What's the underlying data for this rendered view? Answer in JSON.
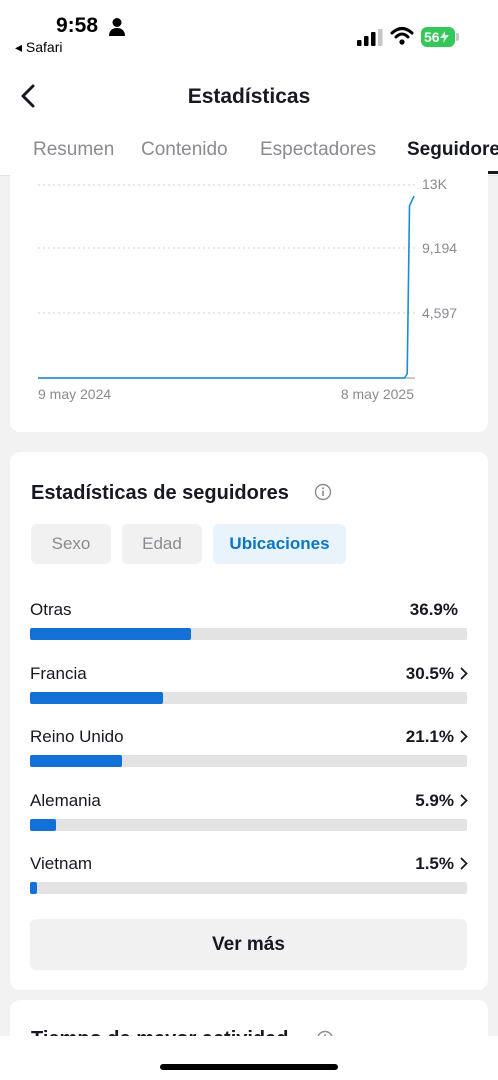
{
  "status_bar": {
    "time": "9:58",
    "back_app": "◂ Safari",
    "battery": "56",
    "icons": [
      "person-icon",
      "signal-icon",
      "wifi-icon",
      "battery-icon"
    ]
  },
  "header": {
    "title": "Estadísticas",
    "back_icon": "chevron-left-icon"
  },
  "tabs": [
    {
      "label": "Resumen",
      "active": false
    },
    {
      "label": "Contenido",
      "active": false
    },
    {
      "label": "Espectadores",
      "active": false
    },
    {
      "label": "Seguidores",
      "active": true
    }
  ],
  "chart_data": {
    "type": "line",
    "x_tick_labels": [
      "9 may 2024",
      "8 may 2025"
    ],
    "y_tick_labels": [
      "13K",
      "9,194",
      "4,597"
    ],
    "ylim": [
      0,
      13791
    ],
    "grid": true,
    "series": [
      {
        "color": "#1a8cd8",
        "points": [
          [
            0,
            0
          ],
          [
            0.975,
            0
          ],
          [
            0.982,
            300
          ],
          [
            0.988,
            12300
          ],
          [
            0.993,
            12600
          ],
          [
            1.0,
            13000
          ]
        ]
      }
    ]
  },
  "followers_stats": {
    "title": "Estadísticas de seguidores",
    "info_icon": "info-icon",
    "chips": [
      {
        "label": "Sexo",
        "active": false
      },
      {
        "label": "Edad",
        "active": false
      },
      {
        "label": "Ubicaciones",
        "active": true
      }
    ],
    "countries": [
      {
        "name": "Otras",
        "percent": "36.9%",
        "value": 36.9,
        "chevron": false
      },
      {
        "name": "Francia",
        "percent": "30.5%",
        "value": 30.5,
        "chevron": true
      },
      {
        "name": "Reino Unido",
        "percent": "21.1%",
        "value": 21.1,
        "chevron": true
      },
      {
        "name": "Alemania",
        "percent": "5.9%",
        "value": 5.9,
        "chevron": true
      },
      {
        "name": "Vietnam",
        "percent": "1.5%",
        "value": 1.5,
        "chevron": true
      }
    ],
    "more_button": "Ver más"
  },
  "next_section": {
    "title": "Tiempo de mayor actividad"
  },
  "colors": {
    "accent": "#1270d6",
    "chip_active_bg": "#e8f3fb",
    "chip_active_text": "#0b76c5",
    "battery": "#34c759"
  }
}
